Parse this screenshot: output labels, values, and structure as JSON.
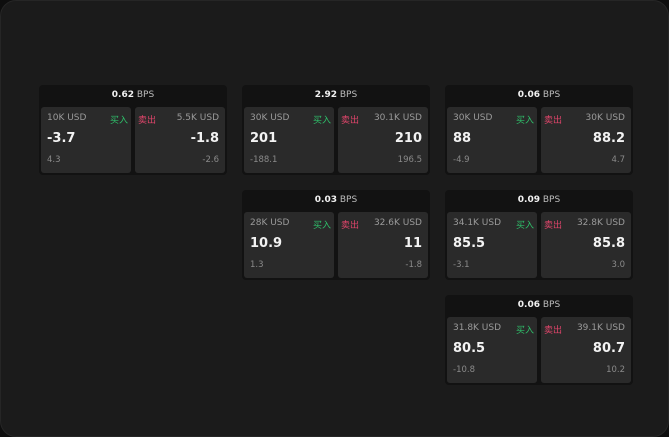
{
  "labels": {
    "buy": "买入",
    "sell": "卖出",
    "unit": "BPS"
  },
  "colors": {
    "buy": "#2fbf6a",
    "sell": "#e0456b"
  },
  "cards": [
    {
      "spread": "0.62",
      "buy": {
        "amount": "10K USD",
        "price": "-3.7",
        "change": "4.3"
      },
      "sell": {
        "amount": "5.5K USD",
        "price": "-1.8",
        "change": "-2.6"
      }
    },
    {
      "spread": "2.92",
      "buy": {
        "amount": "30K USD",
        "price": "201",
        "change": "-188.1"
      },
      "sell": {
        "amount": "30.1K USD",
        "price": "210",
        "change": "196.5"
      }
    },
    {
      "spread": "0.06",
      "buy": {
        "amount": "30K USD",
        "price": "88",
        "change": "-4.9"
      },
      "sell": {
        "amount": "30K USD",
        "price": "88.2",
        "change": "4.7"
      }
    },
    {
      "spread": "0.03",
      "buy": {
        "amount": "28K USD",
        "price": "10.9",
        "change": "1.3"
      },
      "sell": {
        "amount": "32.6K USD",
        "price": "11",
        "change": "-1.8"
      }
    },
    {
      "spread": "0.09",
      "buy": {
        "amount": "34.1K USD",
        "price": "85.5",
        "change": "-3.1"
      },
      "sell": {
        "amount": "32.8K USD",
        "price": "85.8",
        "change": "3.0"
      }
    },
    {
      "spread": "0.06",
      "buy": {
        "amount": "31.8K USD",
        "price": "80.5",
        "change": "-10.8"
      },
      "sell": {
        "amount": "39.1K USD",
        "price": "80.7",
        "change": "10.2"
      }
    }
  ]
}
